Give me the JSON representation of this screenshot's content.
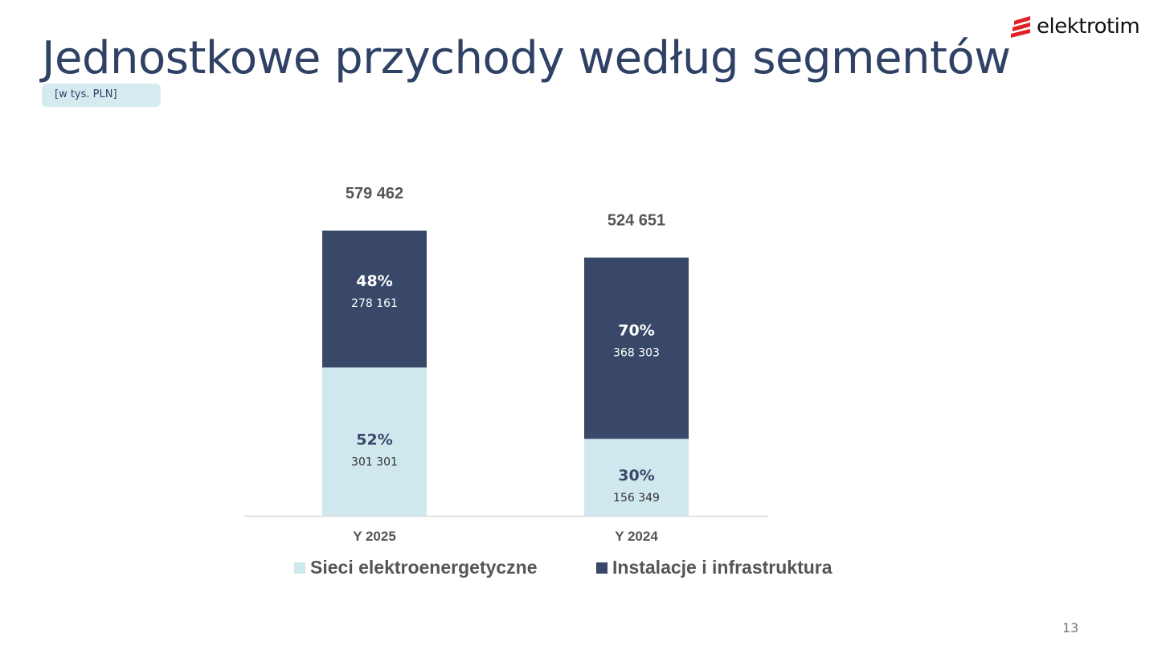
{
  "header": {
    "title": "Jednostkowe przychody według segmentów",
    "unit": "[w tys. PLN]",
    "logo_text": "elektrotim",
    "page_number": "13"
  },
  "colors": {
    "dark": "#394869",
    "light": "#cfe8ee",
    "accent": "#e31e24"
  },
  "chart_data": {
    "type": "bar",
    "stacked": true,
    "categories": [
      "Y 2025",
      "Y 2024"
    ],
    "totals": [
      579462,
      524651
    ],
    "total_labels": [
      "579 462",
      "524 651"
    ],
    "series": [
      {
        "name": "Sieci elektroenergetyczne",
        "values": [
          301301,
          156349
        ],
        "value_labels": [
          "301 301",
          "156 349"
        ],
        "pct_labels": [
          "52%",
          "30%"
        ]
      },
      {
        "name": "Instalacje i infrastruktura",
        "values": [
          278161,
          368303
        ],
        "value_labels": [
          "278 161",
          "368 303"
        ],
        "pct_labels": [
          "48%",
          "70%"
        ]
      }
    ],
    "legend_position": "bottom",
    "grid": false
  }
}
